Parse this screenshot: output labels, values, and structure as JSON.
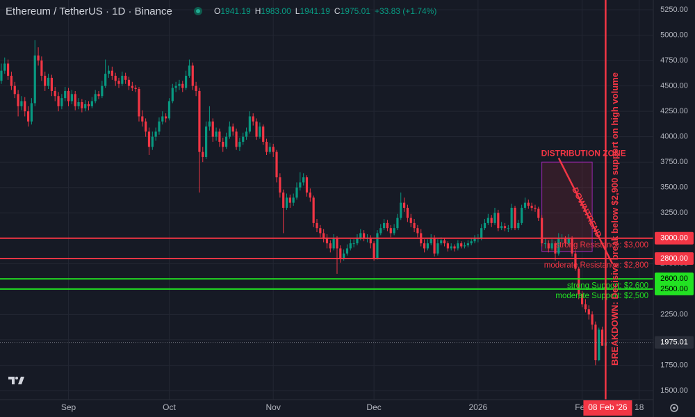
{
  "header": {
    "symbol": "Ethereum / TetherUS · 1D · Binance",
    "fields": [
      {
        "key": "O",
        "value": "1941.19"
      },
      {
        "key": "H",
        "value": "1983.00"
      },
      {
        "key": "L",
        "value": "1941.19"
      },
      {
        "key": "C",
        "value": "1975.01"
      }
    ],
    "change": "+33.83 (+1.74%)"
  },
  "chart_data": {
    "type": "candlestick",
    "up_color": "#089981",
    "down_color": "#f23645",
    "grid": true,
    "xlim": [
      -0.4,
      194.2
    ],
    "ylim": [
      1411,
      5346
    ],
    "yticks": [
      {
        "value": 1500,
        "label": "1500.00"
      },
      {
        "value": 1750,
        "label": "1750.00"
      },
      {
        "value": 2000,
        "label": "2000.00"
      },
      {
        "value": 2250,
        "label": "2250.00"
      },
      {
        "value": 2500,
        "label": "2500.00"
      },
      {
        "value": 2750,
        "label": "2750.00"
      },
      {
        "value": 3000,
        "label": "3000.00"
      },
      {
        "value": 3250,
        "label": "3250.00"
      },
      {
        "value": 3500,
        "label": "3500.00"
      },
      {
        "value": 3750,
        "label": "3750.00"
      },
      {
        "value": 4000,
        "label": "4000.00"
      },
      {
        "value": 4250,
        "label": "4250.00"
      },
      {
        "value": 4500,
        "label": "4500.00"
      },
      {
        "value": 4750,
        "label": "4750.00"
      },
      {
        "value": 5000,
        "label": "5000.00"
      },
      {
        "value": 5250,
        "label": "5250.00"
      }
    ],
    "xlabels": [
      {
        "index": 20,
        "label": "Sep"
      },
      {
        "index": 50,
        "label": "Oct"
      },
      {
        "index": 81,
        "label": "Nov"
      },
      {
        "index": 111,
        "label": "Dec"
      },
      {
        "index": 142,
        "label": "2026"
      },
      {
        "index": 173,
        "label": "Feb"
      },
      {
        "index": 190,
        "label": "18"
      }
    ],
    "candles": [
      [
        4550,
        4720,
        4520,
        4650
      ],
      [
        4650,
        4780,
        4620,
        4720
      ],
      [
        4720,
        4760,
        4560,
        4600
      ],
      [
        4600,
        4640,
        4460,
        4500
      ],
      [
        4500,
        4540,
        4380,
        4420
      ],
      [
        4420,
        4460,
        4200,
        4300
      ],
      [
        4300,
        4400,
        4260,
        4350
      ],
      [
        4350,
        4390,
        4200,
        4250
      ],
      [
        4250,
        4300,
        4100,
        4150
      ],
      [
        4150,
        4380,
        4120,
        4330
      ],
      [
        4330,
        4950,
        4300,
        4800
      ],
      [
        4800,
        4880,
        4700,
        4750
      ],
      [
        4750,
        4790,
        4550,
        4600
      ],
      [
        4600,
        4640,
        4450,
        4500
      ],
      [
        4500,
        4620,
        4470,
        4580
      ],
      [
        4580,
        4610,
        4400,
        4450
      ],
      [
        4450,
        4490,
        4350,
        4400
      ],
      [
        4400,
        4440,
        4250,
        4300
      ],
      [
        4300,
        4420,
        4270,
        4380
      ],
      [
        4380,
        4490,
        4350,
        4450
      ],
      [
        4450,
        4480,
        4300,
        4350
      ],
      [
        4350,
        4460,
        4320,
        4420
      ],
      [
        4420,
        4450,
        4260,
        4300
      ],
      [
        4300,
        4380,
        4270,
        4340
      ],
      [
        4340,
        4370,
        4240,
        4280
      ],
      [
        4280,
        4360,
        4250,
        4320
      ],
      [
        4320,
        4350,
        4260,
        4300
      ],
      [
        4300,
        4390,
        4280,
        4350
      ],
      [
        4350,
        4460,
        4330,
        4420
      ],
      [
        4420,
        4450,
        4370,
        4400
      ],
      [
        4400,
        4550,
        4380,
        4500
      ],
      [
        4500,
        4760,
        4480,
        4620
      ],
      [
        4620,
        4700,
        4580,
        4650
      ],
      [
        4650,
        4690,
        4560,
        4600
      ],
      [
        4600,
        4630,
        4500,
        4550
      ],
      [
        4550,
        4580,
        4480,
        4520
      ],
      [
        4520,
        4640,
        4500,
        4600
      ],
      [
        4600,
        4630,
        4520,
        4560
      ],
      [
        4560,
        4590,
        4460,
        4500
      ],
      [
        4500,
        4540,
        4450,
        4480
      ],
      [
        4480,
        4510,
        4440,
        4470
      ],
      [
        4470,
        4490,
        4150,
        4200
      ],
      [
        4200,
        4260,
        4100,
        4150
      ],
      [
        4150,
        4180,
        4000,
        4050
      ],
      [
        4050,
        4090,
        3820,
        3900
      ],
      [
        3900,
        4050,
        3870,
        4000
      ],
      [
        4000,
        4090,
        3960,
        4050
      ],
      [
        4050,
        4190,
        4020,
        4150
      ],
      [
        4150,
        4250,
        4120,
        4200
      ],
      [
        4200,
        4230,
        4140,
        4180
      ],
      [
        4180,
        4380,
        4160,
        4350
      ],
      [
        4350,
        4520,
        4330,
        4480
      ],
      [
        4480,
        4540,
        4440,
        4500
      ],
      [
        4500,
        4560,
        4460,
        4520
      ],
      [
        4520,
        4550,
        4440,
        4480
      ],
      [
        4480,
        4650,
        4460,
        4600
      ],
      [
        4600,
        4760,
        4580,
        4700
      ],
      [
        4700,
        4730,
        4460,
        4500
      ],
      [
        4500,
        4540,
        4400,
        4450
      ],
      [
        4450,
        4480,
        3450,
        3850
      ],
      [
        3850,
        3900,
        3750,
        3800
      ],
      [
        3800,
        4150,
        3780,
        4100
      ],
      [
        4100,
        4300,
        4060,
        4150
      ],
      [
        4150,
        4180,
        3950,
        4000
      ],
      [
        4000,
        4090,
        3960,
        4050
      ],
      [
        4050,
        4080,
        3900,
        3950
      ],
      [
        3950,
        3990,
        3850,
        3900
      ],
      [
        3900,
        4040,
        3880,
        4000
      ],
      [
        4000,
        4150,
        3980,
        4100
      ],
      [
        4100,
        4130,
        4010,
        4050
      ],
      [
        4050,
        4080,
        3870,
        3900
      ],
      [
        3900,
        3990,
        3860,
        3950
      ],
      [
        3950,
        4040,
        3920,
        4000
      ],
      [
        4000,
        4090,
        3970,
        4050
      ],
      [
        4050,
        4250,
        4030,
        4200
      ],
      [
        4200,
        4230,
        4110,
        4150
      ],
      [
        4150,
        4180,
        3970,
        4000
      ],
      [
        4000,
        4140,
        3980,
        4100
      ],
      [
        4100,
        4120,
        3920,
        3950
      ],
      [
        3950,
        3980,
        3820,
        3850
      ],
      [
        3850,
        3940,
        3830,
        3900
      ],
      [
        3900,
        3930,
        3800,
        3850
      ],
      [
        3850,
        3870,
        3550,
        3600
      ],
      [
        3600,
        3640,
        3400,
        3450
      ],
      [
        3450,
        3480,
        3050,
        3300
      ],
      [
        3300,
        3440,
        3280,
        3400
      ],
      [
        3400,
        3430,
        3300,
        3350
      ],
      [
        3350,
        3440,
        3320,
        3400
      ],
      [
        3400,
        3550,
        3380,
        3500
      ],
      [
        3500,
        3650,
        3470,
        3550
      ],
      [
        3550,
        3640,
        3520,
        3600
      ],
      [
        3600,
        3620,
        3410,
        3450
      ],
      [
        3450,
        3490,
        3360,
        3400
      ],
      [
        3400,
        3420,
        3110,
        3150
      ],
      [
        3150,
        3190,
        3060,
        3100
      ],
      [
        3100,
        3130,
        3010,
        3050
      ],
      [
        3050,
        3090,
        2960,
        3000
      ],
      [
        3000,
        3040,
        2900,
        2950
      ],
      [
        2950,
        2980,
        2860,
        2900
      ],
      [
        2900,
        3040,
        2880,
        3000
      ],
      [
        3000,
        3020,
        2650,
        2900
      ],
      [
        2900,
        2930,
        2760,
        2800
      ],
      [
        2800,
        2890,
        2780,
        2850
      ],
      [
        2850,
        2940,
        2830,
        2900
      ],
      [
        2900,
        2990,
        2880,
        2950
      ],
      [
        2950,
        2990,
        2910,
        2950
      ],
      [
        2950,
        3040,
        2930,
        3000
      ],
      [
        3000,
        3090,
        2980,
        3050
      ],
      [
        3050,
        3080,
        2970,
        3000
      ],
      [
        3000,
        3040,
        2960,
        3000
      ],
      [
        3000,
        3030,
        2900,
        2950
      ],
      [
        2950,
        2970,
        2780,
        2800
      ],
      [
        2800,
        3080,
        2790,
        3050
      ],
      [
        3050,
        3140,
        3030,
        3100
      ],
      [
        3100,
        3190,
        3080,
        3150
      ],
      [
        3150,
        3180,
        3070,
        3100
      ],
      [
        3100,
        3130,
        3010,
        3050
      ],
      [
        3050,
        3140,
        3030,
        3100
      ],
      [
        3100,
        3240,
        3080,
        3200
      ],
      [
        3200,
        3450,
        3180,
        3350
      ],
      [
        3350,
        3400,
        3260,
        3300
      ],
      [
        3300,
        3330,
        3160,
        3200
      ],
      [
        3200,
        3240,
        3110,
        3150
      ],
      [
        3150,
        3190,
        3060,
        3100
      ],
      [
        3100,
        3130,
        3010,
        3050
      ],
      [
        3050,
        3090,
        2920,
        2950
      ],
      [
        2950,
        2990,
        2860,
        2900
      ],
      [
        2900,
        2990,
        2880,
        2950
      ],
      [
        2950,
        3040,
        2930,
        3000
      ],
      [
        3000,
        3030,
        2820,
        2850
      ],
      [
        2850,
        2990,
        2830,
        2950
      ],
      [
        2950,
        3010,
        2930,
        2980
      ],
      [
        2980,
        3000,
        2920,
        2950
      ],
      [
        2950,
        2970,
        2870,
        2900
      ],
      [
        2900,
        2950,
        2880,
        2920
      ],
      [
        2920,
        2940,
        2870,
        2900
      ],
      [
        2900,
        2980,
        2880,
        2950
      ],
      [
        2950,
        2970,
        2900,
        2920
      ],
      [
        2920,
        2960,
        2900,
        2930
      ],
      [
        2930,
        2980,
        2910,
        2950
      ],
      [
        2950,
        3000,
        2930,
        2970
      ],
      [
        2970,
        3030,
        2950,
        3000
      ],
      [
        3000,
        3040,
        2960,
        3000
      ],
      [
        3000,
        3140,
        2980,
        3100
      ],
      [
        3100,
        3190,
        3080,
        3150
      ],
      [
        3150,
        3240,
        3130,
        3200
      ],
      [
        3200,
        3230,
        3110,
        3150
      ],
      [
        3150,
        3300,
        3130,
        3250
      ],
      [
        3250,
        3280,
        3070,
        3100
      ],
      [
        3100,
        3160,
        3080,
        3120
      ],
      [
        3120,
        3150,
        3070,
        3100
      ],
      [
        3100,
        3130,
        3060,
        3100
      ],
      [
        3100,
        3340,
        3080,
        3300
      ],
      [
        3300,
        3320,
        3080,
        3100
      ],
      [
        3100,
        3180,
        3080,
        3150
      ],
      [
        3150,
        3330,
        3130,
        3300
      ],
      [
        3300,
        3400,
        3280,
        3350
      ],
      [
        3350,
        3380,
        3290,
        3320
      ],
      [
        3320,
        3350,
        3270,
        3300
      ],
      [
        3300,
        3330,
        3260,
        3290
      ],
      [
        3290,
        3310,
        3170,
        3200
      ],
      [
        3200,
        3230,
        2920,
        2950
      ],
      [
        2950,
        3000,
        2900,
        2950
      ],
      [
        2950,
        2980,
        2860,
        2900
      ],
      [
        2900,
        2990,
        2880,
        2950
      ],
      [
        2950,
        2970,
        2780,
        2850
      ],
      [
        2850,
        3050,
        2830,
        3000
      ],
      [
        3000,
        3040,
        2960,
        3000
      ],
      [
        3000,
        3020,
        2920,
        2950
      ],
      [
        2950,
        3040,
        2930,
        3000
      ],
      [
        3000,
        3020,
        2820,
        2850
      ],
      [
        2850,
        2880,
        2680,
        2700
      ],
      [
        2700,
        2720,
        2400,
        2450
      ],
      [
        2450,
        2480,
        2320,
        2350
      ],
      [
        2350,
        2400,
        2270,
        2300
      ],
      [
        2300,
        2340,
        2200,
        2250
      ],
      [
        2250,
        2280,
        2100,
        2150
      ],
      [
        2150,
        2180,
        1750,
        1800
      ],
      [
        1800,
        2120,
        1790,
        2100
      ],
      [
        2100,
        2130,
        1940,
        1941.19
      ],
      [
        1941.19,
        1983,
        1941.19,
        1975.01
      ]
    ],
    "last": 1975.01,
    "levels": [
      {
        "value": 3000,
        "price_label": "3000.00",
        "text": "strong Resistance: $3,000",
        "color": "#f23645"
      },
      {
        "value": 2800,
        "price_label": "2800.00",
        "text": "moderate Resistance: $2,800",
        "color": "#f23645"
      },
      {
        "value": 2600,
        "price_label": "2600.00",
        "text": "strong Support: $2,600",
        "color": "#22e222"
      },
      {
        "value": 2500,
        "price_label": "2500.00",
        "text": "moderate Support: $2,500",
        "color": "#22e222"
      }
    ],
    "zone": {
      "label": "DISTRIBUTION ZONE",
      "start": 161,
      "end": 176,
      "top": 3750,
      "bottom": 2870
    },
    "trendline": {
      "label": "DOWNTREND",
      "from": [
        166,
        3790
      ],
      "to": [
        182,
        2750
      ]
    },
    "event": {
      "index": 180,
      "label": "BREAKDOWN: Decisive break below $2,900 support on high volume",
      "date_label": "08 Feb '26"
    }
  }
}
